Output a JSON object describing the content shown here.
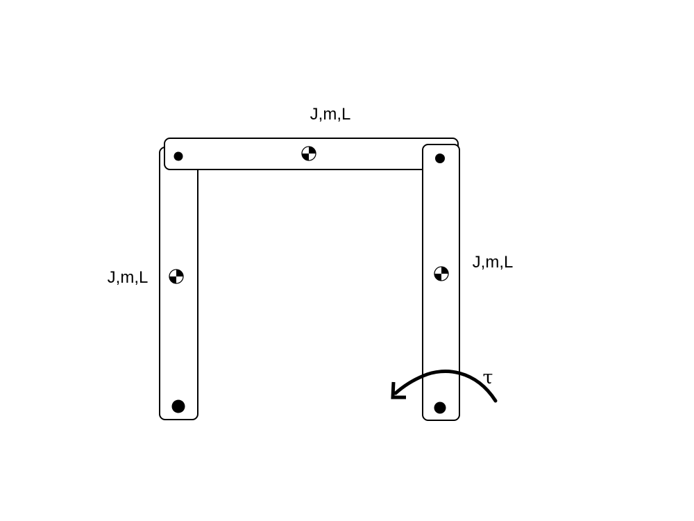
{
  "diagram": {
    "links": {
      "left": {
        "label": "J,m,L"
      },
      "top": {
        "label": "J,m,L"
      },
      "right": {
        "label": "J,m,L"
      }
    },
    "torque": {
      "symbol": "τ",
      "direction": "counterclockwise"
    },
    "colors": {
      "stroke": "#000000",
      "fill": "#ffffff"
    },
    "icons": {
      "joint": "pin-joint-icon",
      "center_of_mass": "center-of-mass-icon"
    }
  }
}
